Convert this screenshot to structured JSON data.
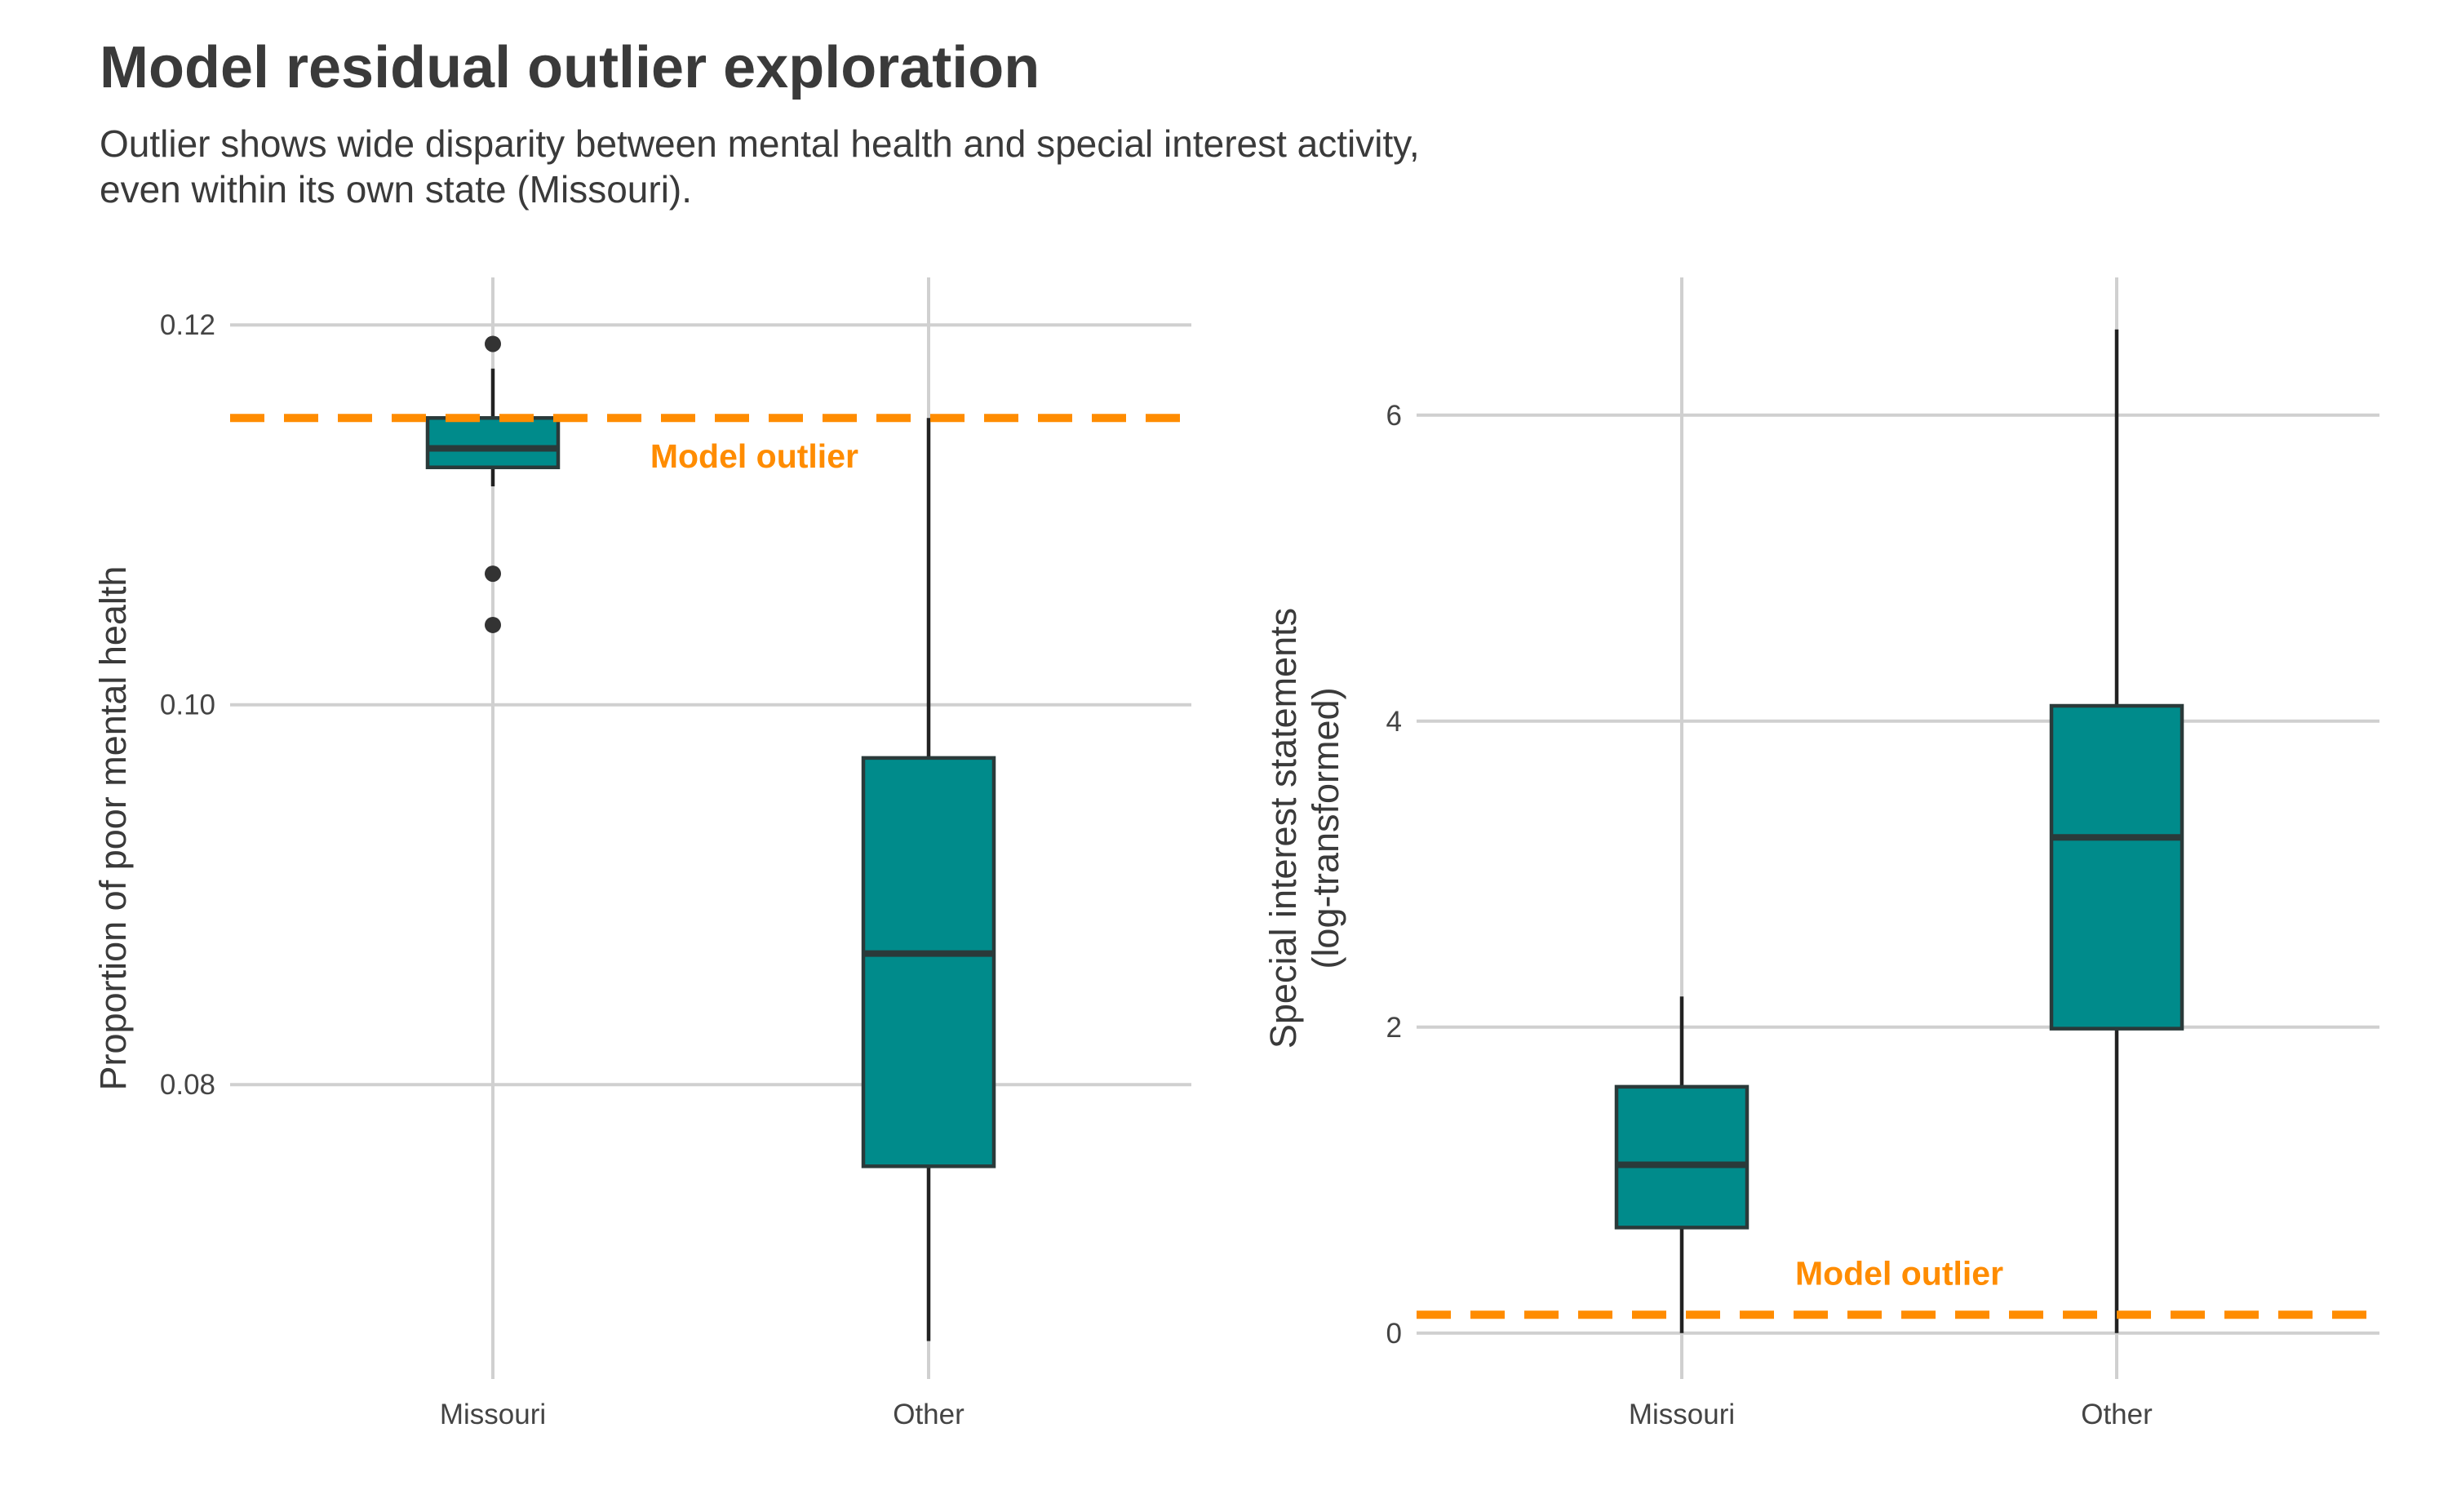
{
  "title": "Model residual outlier exploration",
  "subtitle_lines": [
    "Outlier shows wide disparity between mental health and special interest activity,",
    "even within its own state (Missouri)."
  ],
  "colors": {
    "box_fill": "#008b8b",
    "reference_line": "#ff8c00",
    "grid": "#d0d0d0"
  },
  "chart_data": [
    {
      "type": "box",
      "ylabel_lines": [
        "Proportion of poor mental health"
      ],
      "ylim": [
        0.0645,
        0.1225
      ],
      "yticks": [
        0.08,
        0.1,
        0.12
      ],
      "ytick_labels": [
        "0.08",
        "0.10",
        "0.12"
      ],
      "grid": true,
      "categories": [
        "Missouri",
        "Other"
      ],
      "boxes": [
        {
          "category": "Missouri",
          "whisker_low": 0.1115,
          "q1": 0.1125,
          "median": 0.1135,
          "q3": 0.1151,
          "whisker_high": 0.1177,
          "outliers": [
            0.119,
            0.1069,
            0.1042
          ]
        },
        {
          "category": "Other",
          "whisker_low": 0.0665,
          "q1": 0.0757,
          "median": 0.0869,
          "q3": 0.0972,
          "whisker_high": 0.1151,
          "outliers": []
        }
      ],
      "reference_line": {
        "y": 0.1151,
        "label": "Model outlier",
        "label_x_category": 1.6,
        "label_y": 0.1131
      }
    },
    {
      "type": "box",
      "ylabel_lines": [
        "Special interest statements",
        "(log-transformed)"
      ],
      "ylim": [
        -0.3,
        6.9
      ],
      "yticks": [
        0,
        2,
        4,
        6
      ],
      "ytick_labels": [
        "0",
        "2",
        "4",
        "6"
      ],
      "grid": true,
      "categories": [
        "Missouri",
        "Other"
      ],
      "boxes": [
        {
          "category": "Missouri",
          "whisker_low": 0.0,
          "q1": 0.69,
          "median": 1.1,
          "q3": 1.61,
          "whisker_high": 2.2,
          "outliers": []
        },
        {
          "category": "Other",
          "whisker_low": 0.0,
          "q1": 1.99,
          "median": 3.24,
          "q3": 4.1,
          "whisker_high": 6.56,
          "outliers": []
        }
      ],
      "reference_line": {
        "y": 0.12,
        "label": "Model outlier",
        "label_x_category": 1.5,
        "label_y": 0.39
      }
    }
  ]
}
